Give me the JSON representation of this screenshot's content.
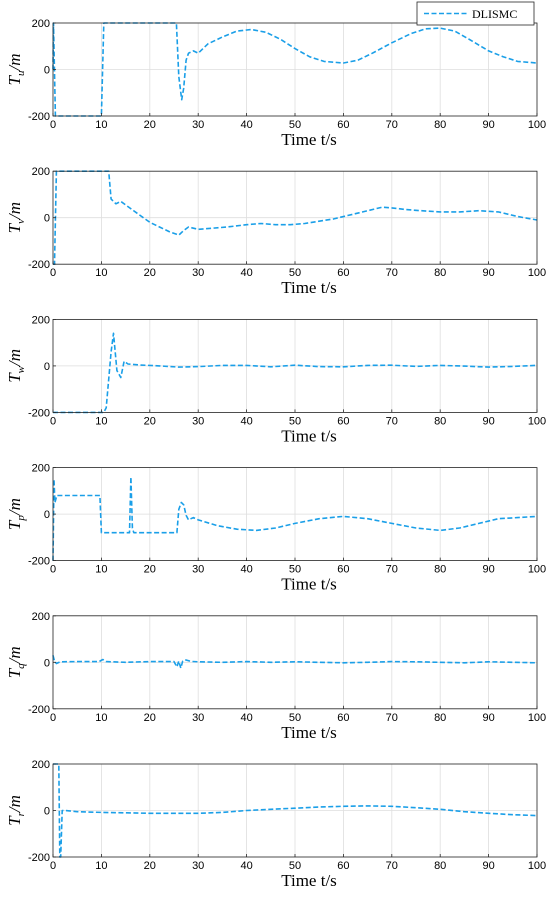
{
  "colors": {
    "series": "#1a9fe8",
    "grid": "#dedede",
    "axis": "#262626"
  },
  "legend": {
    "label": "DLISMC",
    "placement": "top-right"
  },
  "chart_data": [
    {
      "type": "line",
      "ylabel": {
        "main": "T",
        "sub": "u",
        "unit": "/m"
      },
      "xlabel": "Time t/s",
      "xlim": [
        0,
        100
      ],
      "ylim": [
        -200,
        200
      ],
      "xticks": [
        0,
        10,
        20,
        30,
        40,
        50,
        60,
        70,
        80,
        90,
        100
      ],
      "yticks": [
        -200,
        0,
        200
      ],
      "series": [
        {
          "name": "DLISMC",
          "x": [
            0,
            0.1,
            0.5,
            9.5,
            10,
            10.5,
            25,
            25.5,
            26,
            26.6,
            27,
            27.5,
            28,
            29,
            30,
            32,
            35,
            38,
            41,
            44,
            47,
            50,
            53,
            56,
            60,
            63,
            66,
            70,
            74,
            77,
            80,
            83,
            86,
            90,
            93,
            96,
            100
          ],
          "y": [
            0,
            200,
            -200,
            -200,
            -200,
            200,
            200,
            200,
            -30,
            -130,
            -80,
            40,
            70,
            80,
            70,
            110,
            140,
            165,
            172,
            160,
            130,
            90,
            55,
            35,
            28,
            40,
            70,
            115,
            155,
            175,
            178,
            165,
            130,
            80,
            55,
            35,
            28
          ]
        }
      ]
    },
    {
      "type": "line",
      "ylabel": {
        "main": "T",
        "sub": "v",
        "unit": "/m"
      },
      "xlabel": "Time t/s",
      "xlim": [
        0,
        100
      ],
      "ylim": [
        -200,
        200
      ],
      "xticks": [
        0,
        10,
        20,
        30,
        40,
        50,
        60,
        70,
        80,
        90,
        100
      ],
      "yticks": [
        -200,
        0,
        200
      ],
      "series": [
        {
          "name": "DLISMC",
          "x": [
            0,
            0.3,
            0.7,
            1.2,
            11.5,
            12,
            13,
            14,
            16,
            18,
            20,
            22,
            24,
            26,
            27,
            28,
            29,
            30,
            33,
            36,
            40,
            43,
            46,
            49,
            52,
            55,
            58,
            61,
            64,
            68,
            70,
            73,
            76,
            80,
            84,
            88,
            92,
            96,
            100
          ],
          "y": [
            -200,
            -200,
            200,
            200,
            200,
            80,
            60,
            70,
            40,
            10,
            -20,
            -40,
            -60,
            -75,
            -55,
            -40,
            -45,
            -50,
            -45,
            -40,
            -30,
            -25,
            -30,
            -30,
            -25,
            -15,
            -5,
            10,
            25,
            45,
            42,
            35,
            30,
            25,
            25,
            30,
            25,
            5,
            -10
          ]
        }
      ]
    },
    {
      "type": "line",
      "ylabel": {
        "main": "T",
        "sub": "w",
        "unit": "/m"
      },
      "xlabel": "Time t/s",
      "xlim": [
        0,
        100
      ],
      "ylim": [
        -200,
        200
      ],
      "xticks": [
        0,
        10,
        20,
        30,
        40,
        50,
        60,
        70,
        80,
        90,
        100
      ],
      "yticks": [
        -200,
        0,
        200
      ],
      "series": [
        {
          "name": "DLISMC",
          "x": [
            0,
            10.5,
            11,
            12,
            12.5,
            13.2,
            14,
            14.7,
            15.5,
            18,
            22,
            26,
            30,
            35,
            40,
            45,
            50,
            55,
            60,
            65,
            70,
            75,
            80,
            85,
            90,
            95,
            100
          ],
          "y": [
            -200,
            -200,
            -180,
            60,
            140,
            -20,
            -50,
            20,
            8,
            4,
            0,
            -5,
            -3,
            2,
            2,
            -4,
            3,
            -3,
            -4,
            2,
            3,
            -2,
            2,
            -1,
            -5,
            -2,
            2
          ]
        }
      ]
    },
    {
      "type": "line",
      "ylabel": {
        "main": "T",
        "sub": "p",
        "unit": "/m"
      },
      "xlabel": "Time t/s",
      "xlim": [
        0,
        100
      ],
      "ylim": [
        -200,
        200
      ],
      "xticks": [
        0,
        10,
        20,
        30,
        40,
        50,
        60,
        70,
        80,
        90,
        100
      ],
      "yticks": [
        -200,
        0,
        200
      ],
      "series": [
        {
          "name": "DLISMC",
          "x": [
            0,
            0.2,
            0.4,
            0.8,
            1.2,
            9.7,
            10,
            10.5,
            15.8,
            16.1,
            16.4,
            16.7,
            17,
            25.6,
            26,
            26.5,
            27,
            27.5,
            28,
            28.5,
            29,
            30,
            34,
            38,
            42,
            46,
            50,
            55,
            60,
            65,
            70,
            75,
            80,
            84,
            88,
            92,
            96,
            100
          ],
          "y": [
            -200,
            150,
            50,
            80,
            80,
            80,
            -80,
            -80,
            -80,
            160,
            -60,
            -80,
            -80,
            -80,
            20,
            50,
            40,
            -5,
            -25,
            -20,
            -15,
            -25,
            -50,
            -65,
            -70,
            -60,
            -40,
            -20,
            -10,
            -20,
            -40,
            -60,
            -70,
            -60,
            -40,
            -20,
            -15,
            -10
          ]
        }
      ]
    },
    {
      "type": "line",
      "ylabel": {
        "main": "T",
        "sub": "q",
        "unit": "/m"
      },
      "xlabel": "Time t/s",
      "xlim": [
        0,
        100
      ],
      "ylim": [
        -200,
        200
      ],
      "xticks": [
        0,
        10,
        20,
        30,
        40,
        50,
        60,
        70,
        80,
        90,
        100
      ],
      "yticks": [
        -200,
        0,
        200
      ],
      "series": [
        {
          "name": "DLISMC",
          "x": [
            0,
            0.3,
            0.7,
            1.5,
            5,
            9.5,
            10.3,
            11,
            15,
            20,
            25,
            25.6,
            26,
            26.4,
            26.8,
            27.5,
            28.5,
            30,
            35,
            40,
            45,
            50,
            55,
            60,
            65,
            70,
            75,
            80,
            85,
            90,
            95,
            100
          ],
          "y": [
            30,
            5,
            -5,
            2,
            3,
            3,
            12,
            3,
            0,
            3,
            3,
            -20,
            5,
            -25,
            5,
            10,
            4,
            2,
            0,
            3,
            0,
            2,
            0,
            -2,
            0,
            3,
            2,
            0,
            -2,
            2,
            0,
            -2
          ]
        }
      ]
    },
    {
      "type": "line",
      "ylabel": {
        "main": "T",
        "sub": "r",
        "unit": "/m"
      },
      "xlabel": "Time t/s",
      "xlim": [
        0,
        100
      ],
      "ylim": [
        -200,
        200
      ],
      "xticks": [
        0,
        10,
        20,
        30,
        40,
        50,
        60,
        70,
        80,
        90,
        100
      ],
      "yticks": [
        -200,
        0,
        200
      ],
      "series": [
        {
          "name": "DLISMC",
          "x": [
            0,
            1.2,
            1.4,
            1.6,
            1.9,
            2.5,
            5,
            10,
            15,
            20,
            25,
            30,
            35,
            40,
            45,
            50,
            55,
            60,
            65,
            70,
            75,
            80,
            85,
            90,
            95,
            100
          ],
          "y": [
            200,
            200,
            -200,
            -200,
            0,
            0,
            -5,
            -8,
            -10,
            -12,
            -12,
            -12,
            -8,
            0,
            5,
            10,
            15,
            18,
            20,
            18,
            12,
            5,
            -5,
            -12,
            -18,
            -22
          ]
        }
      ]
    }
  ]
}
